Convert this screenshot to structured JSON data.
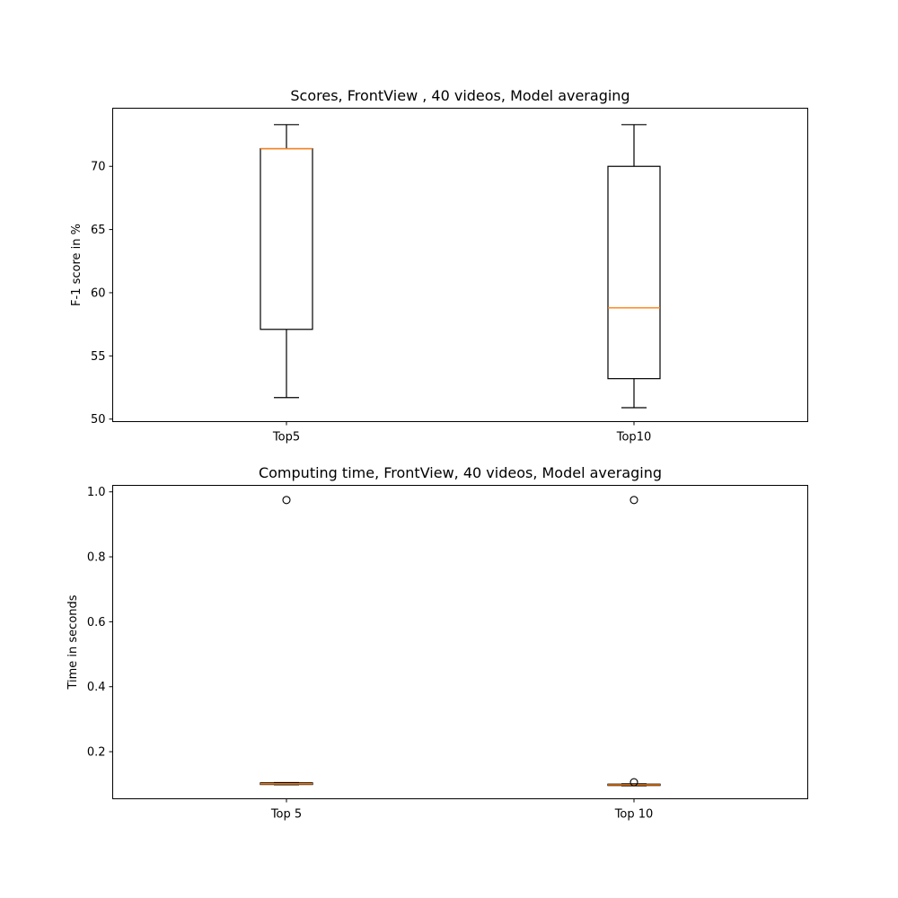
{
  "chart_data": [
    {
      "type": "box",
      "title": "Scores, FrontView , 40 videos, Model averaging",
      "xlabel": "",
      "ylabel": "F-1 score in %",
      "ylim": [
        49.8,
        74.6
      ],
      "yticks": [
        "50",
        "55",
        "60",
        "65",
        "70"
      ],
      "ytick_values": [
        50,
        55,
        60,
        65,
        70
      ],
      "grid": false,
      "categories": [
        "Top5",
        "Top10"
      ],
      "boxes": [
        {
          "whislo": 51.7,
          "q1": 57.1,
          "med": 71.4,
          "q3": 71.4,
          "whishi": 73.3,
          "fliers": []
        },
        {
          "whislo": 50.9,
          "q1": 53.2,
          "med": 58.8,
          "q3": 70.0,
          "whishi": 73.3,
          "fliers": []
        }
      ]
    },
    {
      "type": "box",
      "title": "Computing time, FrontView, 40 videos, Model averaging",
      "xlabel": "",
      "ylabel": "Time in seconds",
      "ylim": [
        0.055,
        1.02
      ],
      "yticks": [
        "0.2",
        "0.4",
        "0.6",
        "0.8",
        "1.0"
      ],
      "ytick_values": [
        0.2,
        0.4,
        0.6,
        0.8,
        1.0
      ],
      "grid": false,
      "categories": [
        "Top 5",
        "Top 10"
      ],
      "boxes": [
        {
          "whislo": 0.098,
          "q1": 0.099,
          "med": 0.101,
          "q3": 0.104,
          "whishi": 0.105,
          "fliers": [
            0.975
          ]
        },
        {
          "whislo": 0.095,
          "q1": 0.096,
          "med": 0.098,
          "q3": 0.1,
          "whishi": 0.101,
          "fliers": [
            0.975,
            0.106
          ]
        }
      ]
    }
  ],
  "colors": {
    "median": "#ff7f0e",
    "box": "#000000",
    "background": "#ffffff"
  }
}
